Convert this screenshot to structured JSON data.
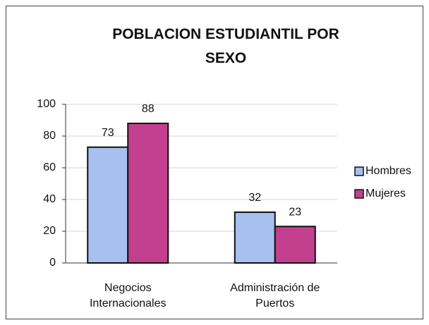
{
  "chart_data": {
    "type": "bar",
    "title": "POBLACION ESTUDIANTIL POR SEXO",
    "categories": [
      "Negocios Internacionales",
      "Administración de Puertos"
    ],
    "series": [
      {
        "name": "Hombres",
        "color": "#a8c0ee",
        "values": [
          73,
          32
        ]
      },
      {
        "name": "Mujeres",
        "color": "#c2408e",
        "values": [
          88,
          23
        ]
      }
    ],
    "ylim": [
      0,
      100
    ],
    "yticks": [
      0,
      20,
      40,
      60,
      80,
      100
    ],
    "grid": true,
    "legend": "right"
  }
}
